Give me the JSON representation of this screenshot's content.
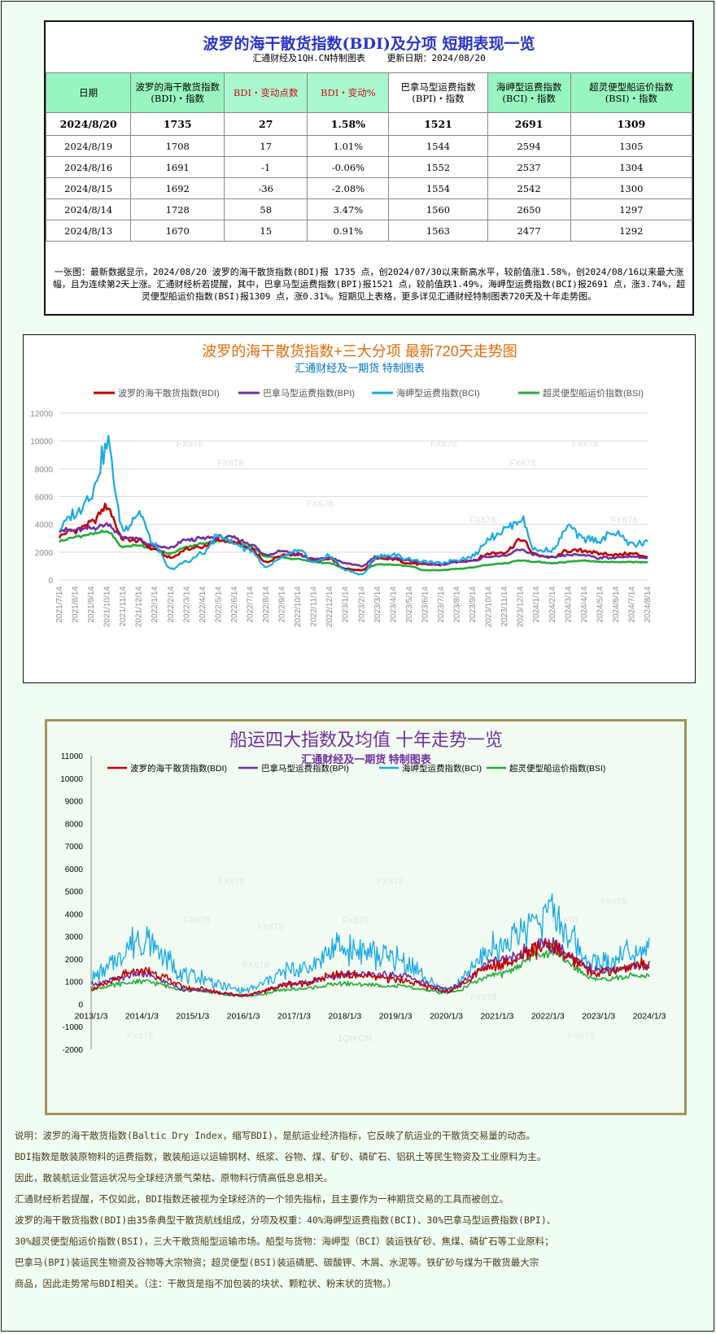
{
  "table": {
    "title": "波罗的海干散货指数(BDI)及分项 短期表现一览",
    "source": "汇通财经及1QH.CN特制图表",
    "updated": "更新日期：2024/08/20",
    "headers": [
      [
        "日期"
      ],
      [
        "波罗的海干散货指数",
        "(BDI)・指数"
      ],
      [
        "BDI・变动点数"
      ],
      [
        "BDI・变动%"
      ],
      [
        "巴拿马型运费指数",
        "(BPI)・指数"
      ],
      [
        "海岬型运费指数",
        "(BCI)・指数"
      ],
      [
        "超灵便型船运价指数",
        "(BSI)・指数"
      ]
    ],
    "rows": [
      [
        "2024/8/20",
        "1735",
        "27",
        "1.58%",
        "1521",
        "2691",
        "1309"
      ],
      [
        "2024/8/19",
        "1708",
        "17",
        "1.01%",
        "1544",
        "2594",
        "1305"
      ],
      [
        "2024/8/16",
        "1691",
        "-1",
        "-0.06%",
        "1552",
        "2537",
        "1304"
      ],
      [
        "2024/8/15",
        "1692",
        "-36",
        "-2.08%",
        "1554",
        "2542",
        "1300"
      ],
      [
        "2024/8/14",
        "1728",
        "58",
        "3.47%",
        "1560",
        "2650",
        "1297"
      ],
      [
        "2024/8/13",
        "1670",
        "15",
        "0.91%",
        "1563",
        "2477",
        "1292"
      ]
    ],
    "note": "一张图：最新数据显示，2024/08/20 波罗的海干散货指数(BDI)报 1735 点，创2024/07/30以来新高水平，较前值涨1.58%，创2024/08/16以来最大涨幅，且为连续第2天上涨。汇通财经析若提醒，其中，巴拿马型运费指数(BPI)报1521 点，较前值跌1.49%，海岬型运费指数(BCI)报2691 点，涨3.74%，超灵便型船运价指数(BSI)报1309 点，涨0.31%。短期见上表格，更多详见汇通财经特制图表720天及十年走势图。"
  },
  "chart_data": [
    {
      "type": "line",
      "title": "波罗的海干散货指数+三大分项  最新720天走势图",
      "subtitle": "汇通财经及一期货  特制图表",
      "legend_position": "top",
      "grid": true,
      "ylim": [
        0,
        12000
      ],
      "yticks": [
        "0",
        "2000",
        "4000",
        "6000",
        "8000",
        "10000",
        "12000"
      ],
      "x": [
        "2021/7/14",
        "2021/8/14",
        "2021/9/14",
        "2021/10/14",
        "2021/11/14",
        "2021/12/14",
        "2022/1/14",
        "2022/2/14",
        "2022/3/14",
        "2022/4/14",
        "2022/5/14",
        "2022/6/14",
        "2022/7/14",
        "2022/8/14",
        "2022/9/14",
        "2022/10/14",
        "2022/11/14",
        "2022/12/14",
        "2023/1/14",
        "2023/2/14",
        "2023/3/14",
        "2023/4/14",
        "2023/5/14",
        "2023/6/14",
        "2023/7/14",
        "2023/8/14",
        "2023/9/14",
        "2023/10/14",
        "2023/11/14",
        "2023/12/14",
        "2024/1/14",
        "2024/2/14",
        "2024/3/14",
        "2024/4/14",
        "2024/5/14",
        "2024/6/14",
        "2024/7/14",
        "2024/8/14"
      ],
      "series": [
        {
          "name": "波罗的海干散货指数(BDI)",
          "color": "#c00000",
          "values": [
            3200,
            3600,
            4100,
            5200,
            3000,
            2800,
            2200,
            1600,
            2200,
            2400,
            2900,
            2700,
            2200,
            1300,
            1800,
            1900,
            1400,
            1500,
            800,
            700,
            1500,
            1500,
            1200,
            1100,
            1100,
            1300,
            1400,
            1900,
            2000,
            2900,
            1800,
            1600,
            2100,
            2100,
            1900,
            1800,
            1900,
            1700
          ]
        },
        {
          "name": "巴拿马型运费指数(BPI)",
          "color": "#7030a0",
          "values": [
            3600,
            3600,
            3700,
            4000,
            3100,
            2900,
            2400,
            2300,
            2900,
            3000,
            3100,
            3000,
            2600,
            1800,
            2100,
            1800,
            1500,
            1600,
            1200,
            1000,
            1700,
            1600,
            1400,
            1200,
            1100,
            1300,
            1400,
            1700,
            1700,
            2200,
            1800,
            1600,
            1800,
            1800,
            1600,
            1600,
            1700,
            1560
          ]
        },
        {
          "name": "海岬型运费指数(BCI)",
          "color": "#17a9e6",
          "values": [
            3800,
            4800,
            6200,
            9800,
            3600,
            4800,
            2400,
            800,
            1300,
            1900,
            3200,
            2600,
            2200,
            900,
            1600,
            2100,
            1300,
            1700,
            700,
            400,
            1700,
            1800,
            1500,
            1300,
            1200,
            1500,
            1700,
            3000,
            3600,
            4400,
            2100,
            2200,
            3800,
            3000,
            2900,
            3400,
            2600,
            2650
          ]
        },
        {
          "name": "超灵便型船运价指数(BSI)",
          "color": "#22ac38",
          "values": [
            2800,
            3100,
            3300,
            3500,
            2400,
            2500,
            2200,
            1900,
            2400,
            2600,
            2800,
            2700,
            2400,
            1700,
            1600,
            1500,
            1300,
            1200,
            800,
            700,
            1100,
            1100,
            1000,
            700,
            700,
            800,
            900,
            1100,
            1200,
            1400,
            1300,
            1200,
            1300,
            1400,
            1300,
            1300,
            1300,
            1297
          ]
        }
      ]
    },
    {
      "type": "line",
      "title": "船运四大指数及均值 十年走势一览",
      "subtitle": "汇通财经及一期货 特制图表",
      "legend_position": "top",
      "grid": false,
      "ylim": [
        -2000,
        11000
      ],
      "yticks": [
        "-2000",
        "-1000",
        "0",
        "1000",
        "2000",
        "3000",
        "4000",
        "5000",
        "6000",
        "7000",
        "8000",
        "9000",
        "10000",
        "11000"
      ],
      "x": [
        "2013/1/3",
        "2014/1/3",
        "2015/1/3",
        "2016/1/3",
        "2017/1/3",
        "2018/1/3",
        "2019/1/3",
        "2020/1/3",
        "2021/1/3",
        "2022/1/3",
        "2023/1/3",
        "2024/1/3"
      ],
      "series": [
        {
          "name": "波罗的海干散货指数(BDI)",
          "color": "#c00000",
          "values": [
            700,
            1500,
            700,
            400,
            900,
            1300,
            1100,
            600,
            1800,
            2500,
            1400,
            1800
          ]
        },
        {
          "name": "巴拿马型运费指数(BPI)",
          "color": "#7030a0",
          "values": [
            900,
            1300,
            600,
            400,
            900,
            1300,
            1300,
            700,
            1900,
            2600,
            1500,
            1700
          ]
        },
        {
          "name": "海岬型运费指数(BCI)",
          "color": "#17a9e6",
          "values": [
            1200,
            2800,
            1200,
            600,
            1500,
            2500,
            2000,
            600,
            2500,
            4000,
            1800,
            2600
          ]
        },
        {
          "name": "超灵便型船运价指数(BSI)",
          "color": "#22ac38",
          "values": [
            700,
            1000,
            600,
            350,
            650,
            900,
            800,
            500,
            1300,
            2300,
            1100,
            1300
          ]
        }
      ]
    }
  ],
  "footer": [
    "说明：波罗的海干散货指数(Baltic Dry Index，缩写BDI)，是航运业经济指标，它反映了航运业的干散货交易量的动态。",
    "BDI指数是散装原物料的运费指数，散装船运以运输钢材、纸浆、谷物、煤、矿砂、磷矿石、铝矾土等民生物资及工业原料为主。",
    "因此，散装航运业营运状况与全球经济景气荣枯、原物料行情高低息息相关。",
    "汇通财经析若提醒，不仅如此，BDI指数还被视为全球经济的一个领先指标，且主要作为一种期货交易的工具而被创立。",
    "波罗的海干散货指数(BDI)由35条典型干散货航线组成，分项及权重：40%海岬型运费指数(BCI)、30%巴拿马型运费指数(BPI)、",
    "30%超灵便型船运价指数(BSI)，三大干散货船型运输市场。船型与货物：海岬型（BCI）装运铁矿砂、焦煤、磷矿石等工业原料；",
    "巴拿马(BPI)装运民生物资及谷物等大宗物资；超灵便型(BSI)装运磷肥、碳酸钾、木屑、水泥等。铁矿砂与煤为干散货最大宗",
    "商品，因此走势常与BDI相关。（注：干散货是指不加包装的块状、颗粒状、粉末状的货物。）"
  ],
  "watermarks": [
    "FX678",
    "1QH.CN"
  ],
  "colors": {
    "title_blue": "#2a35c8",
    "chart1_title": "#e26b0a",
    "chart1_sub": "#0070c0",
    "chart2_title": "#7030a0",
    "header_green": "#aaf7cf"
  }
}
